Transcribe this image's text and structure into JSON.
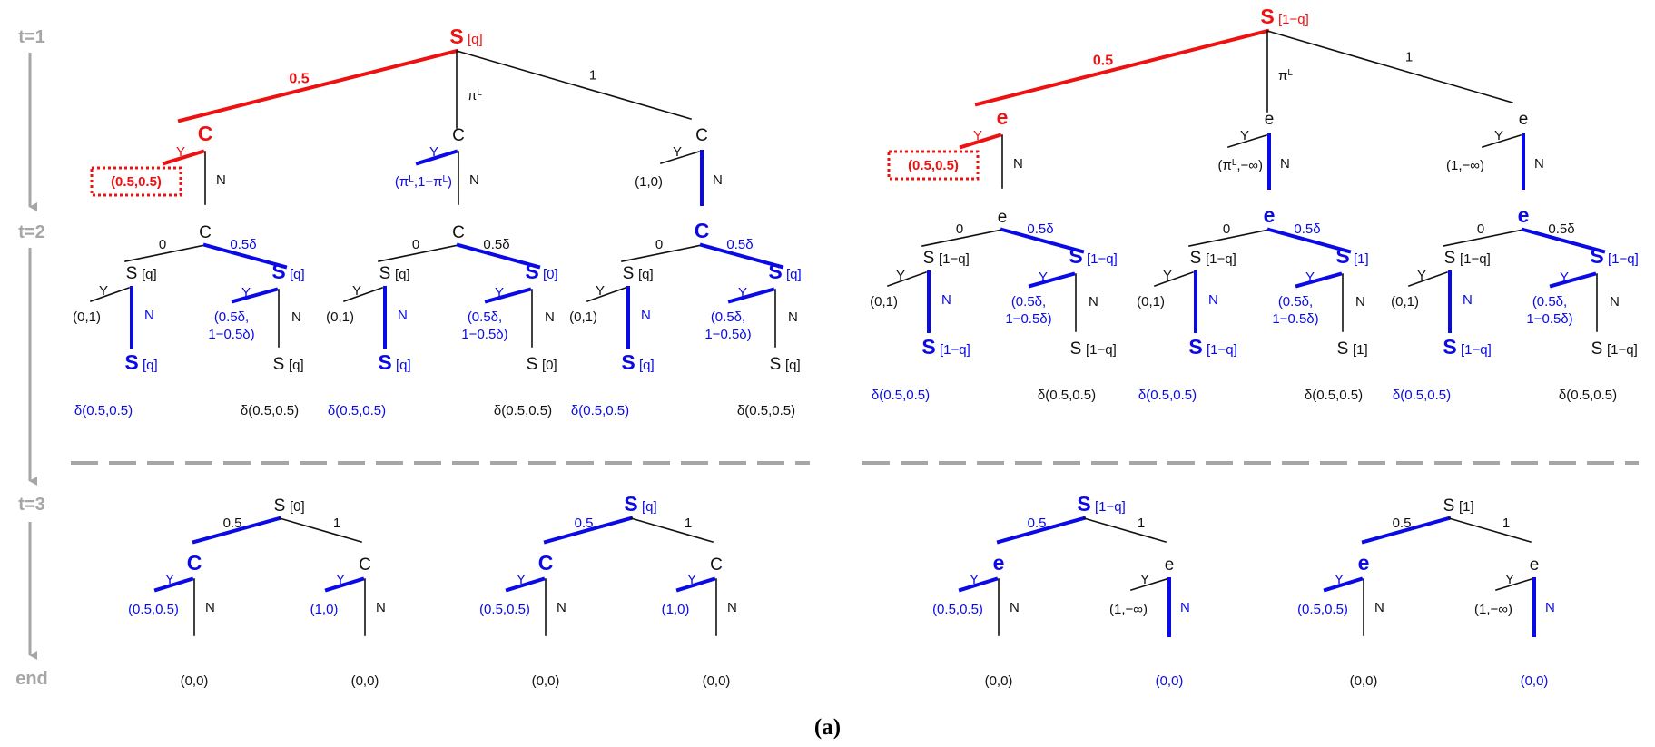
{
  "caption": "(a)",
  "time_labels": [
    "t=1",
    "t=2",
    "t=3",
    "end"
  ],
  "colors": {
    "red": "#ee1111",
    "blue": "#0a0ae6",
    "black": "#111111",
    "gray": "#a6a6a6"
  },
  "left": {
    "root": {
      "node": "S",
      "belief": "[q]",
      "branch_labels": [
        "0.5",
        "π",
        "1"
      ],
      "pi_sup": "L"
    },
    "level1": [
      {
        "node": "C",
        "payoff": "(0.5,0.5)",
        "y": "Y",
        "n": "N"
      },
      {
        "node": "C",
        "payoff_parts": [
          "(π",
          "L",
          ",1−π",
          "L",
          ")"
        ],
        "y": "Y",
        "n": "N"
      },
      {
        "node": "C",
        "payoff": "(1,0)",
        "y": "Y",
        "n": "N"
      }
    ],
    "level2": [
      {
        "node": "C",
        "label0": "0",
        "label1": "0.5δ",
        "left": {
          "node": "S",
          "belief": "[q]",
          "payoff": "(0,1)",
          "y": "Y",
          "n": "N",
          "child": "S",
          "child_belief": "[q]",
          "delta": "δ(0.5,0.5)"
        },
        "right": {
          "node": "S",
          "belief": "[q]",
          "payoff_lines": [
            "(0.5δ,",
            "1−0.5δ)"
          ],
          "y": "Y",
          "n": "N",
          "child": "S",
          "child_belief": "[q]",
          "delta": "δ(0.5,0.5)"
        }
      },
      {
        "node": "C",
        "label0": "0",
        "label1": "0.5δ",
        "left": {
          "node": "S",
          "belief": "[q]",
          "payoff": "(0,1)",
          "y": "Y",
          "n": "N",
          "child": "S",
          "child_belief": "[q]",
          "delta": "δ(0.5,0.5)"
        },
        "right": {
          "node": "S",
          "belief": "[0]",
          "payoff_lines": [
            "(0.5δ,",
            "1−0.5δ)"
          ],
          "y": "Y",
          "n": "N",
          "child": "S",
          "child_belief": "[0]",
          "delta": "δ(0.5,0.5)"
        }
      },
      {
        "node": "C",
        "label0": "0",
        "label1": "0.5δ",
        "left": {
          "node": "S",
          "belief": "[q]",
          "payoff": "(0,1)",
          "y": "Y",
          "n": "N",
          "child": "S",
          "child_belief": "[q]",
          "delta": "δ(0.5,0.5)"
        },
        "right": {
          "node": "S",
          "belief": "[q]",
          "payoff_lines": [
            "(0.5δ,",
            "1−0.5δ)"
          ],
          "y": "Y",
          "n": "N",
          "child": "S",
          "child_belief": "[q]",
          "delta": "δ(0.5,0.5)"
        }
      }
    ],
    "level3": [
      {
        "node": "S",
        "belief": "[0]",
        "label0": "0.5",
        "label1": "1",
        "children": [
          {
            "node": "C",
            "payoff": "(0.5,0.5)",
            "y": "Y",
            "n": "N",
            "end": "(0,0)"
          },
          {
            "node": "C",
            "payoff": "(1,0)",
            "y": "Y",
            "n": "N",
            "end": "(0,0)"
          }
        ]
      },
      {
        "node": "S",
        "belief": "[q]",
        "label0": "0.5",
        "label1": "1",
        "children": [
          {
            "node": "C",
            "payoff": "(0.5,0.5)",
            "y": "Y",
            "n": "N",
            "end": "(0,0)"
          },
          {
            "node": "C",
            "payoff": "(1,0)",
            "y": "Y",
            "n": "N",
            "end": "(0,0)"
          }
        ]
      }
    ]
  },
  "right": {
    "root": {
      "node": "S",
      "belief": "[1−q]",
      "branch_labels": [
        "0.5",
        "π",
        "1"
      ],
      "pi_sup": "L"
    },
    "level1": [
      {
        "node": "e",
        "payoff": "(0.5,0.5)",
        "y": "Y",
        "n": "N"
      },
      {
        "node": "e",
        "payoff_parts": [
          "(π",
          "L",
          ",−∞)"
        ],
        "y": "Y",
        "n": "N"
      },
      {
        "node": "e",
        "payoff": "(1,−∞)",
        "y": "Y",
        "n": "N"
      }
    ],
    "level2": [
      {
        "node": "e",
        "label0": "0",
        "label1": "0.5δ",
        "left": {
          "node": "S",
          "belief": "[1−q]",
          "payoff": "(0,1)",
          "y": "Y",
          "n": "N",
          "child": "S",
          "child_belief": "[1−q]",
          "delta": "δ(0.5,0.5)"
        },
        "right": {
          "node": "S",
          "belief": "[1−q]",
          "payoff_lines": [
            "(0.5δ,",
            "1−0.5δ)"
          ],
          "y": "Y",
          "n": "N",
          "child": "S",
          "child_belief": "[1−q]",
          "delta": "δ(0.5,0.5)"
        }
      },
      {
        "node": "e",
        "label0": "0",
        "label1": "0.5δ",
        "left": {
          "node": "S",
          "belief": "[1−q]",
          "payoff": "(0,1)",
          "y": "Y",
          "n": "N",
          "child": "S",
          "child_belief": "[1−q]",
          "delta": "δ(0.5,0.5)"
        },
        "right": {
          "node": "S",
          "belief": "[1]",
          "payoff_lines": [
            "(0.5δ,",
            "1−0.5δ)"
          ],
          "y": "Y",
          "n": "N",
          "child": "S",
          "child_belief": "[1]",
          "delta": "δ(0.5,0.5)"
        }
      },
      {
        "node": "e",
        "label0": "0",
        "label1": "0.5δ",
        "left": {
          "node": "S",
          "belief": "[1−q]",
          "payoff": "(0,1)",
          "y": "Y",
          "n": "N",
          "child": "S",
          "child_belief": "[1−q]",
          "delta": "δ(0.5,0.5)"
        },
        "right": {
          "node": "S",
          "belief": "[1−q]",
          "payoff_lines": [
            "(0.5δ,",
            "1−0.5δ)"
          ],
          "y": "Y",
          "n": "N",
          "child": "S",
          "child_belief": "[1−q]",
          "delta": "δ(0.5,0.5)"
        }
      }
    ],
    "level3": [
      {
        "node": "S",
        "belief": "[1−q]",
        "label0": "0.5",
        "label1": "1",
        "children": [
          {
            "node": "e",
            "payoff": "(0.5,0.5)",
            "y": "Y",
            "n": "N",
            "end": "(0,0)"
          },
          {
            "node": "e",
            "payoff": "(1,−∞)",
            "y": "Y",
            "n": "N",
            "end": "(0,0)"
          }
        ]
      },
      {
        "node": "S",
        "belief": "[1]",
        "label0": "0.5",
        "label1": "1",
        "children": [
          {
            "node": "e",
            "payoff": "(0.5,0.5)",
            "y": "Y",
            "n": "N",
            "end": "(0,0)"
          },
          {
            "node": "e",
            "payoff": "(1,−∞)",
            "y": "Y",
            "n": "N",
            "end": "(0,0)"
          }
        ]
      }
    ]
  }
}
